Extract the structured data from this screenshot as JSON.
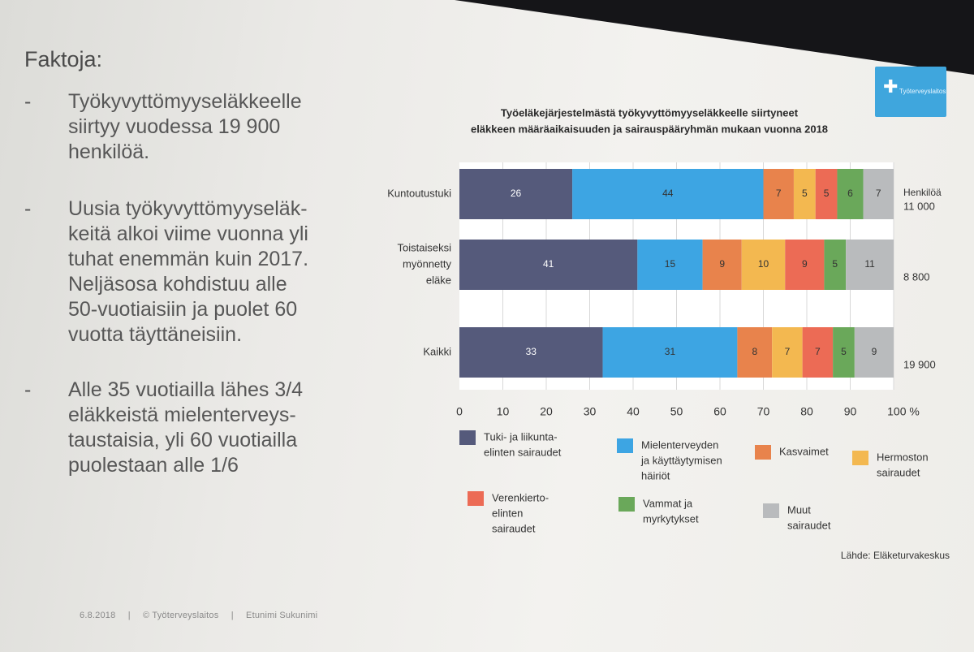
{
  "slide": {
    "heading": "Faktoja:",
    "bullets": [
      {
        "dash": "-",
        "text": "Työkyvyttömyyseläkkeelle\nsiirtyy vuodessa 19 900\nhenkilöä."
      },
      {
        "dash": "-",
        "text": "Uusia työkyvyttömyyseläk-\nkeitä alkoi viime vuonna yli\ntuhat enemmän kuin 2017.\nNeljäsosa kohdistuu alle\n50-vuotiaisiin ja puolet 60\nvuotta täyttäneisiin."
      },
      {
        "dash": "-",
        "text": "Alle 35 vuotiailla lähes 3/4\neläkkeistä mielenterveys-\ntaustaisia, yli 60 vuotiailla\npuolestaan alle 1/6"
      }
    ],
    "logo_text": "Työterveyslaitos",
    "footer": {
      "date": "6.8.2018",
      "org": "© Työterveyslaitos",
      "author": "Etunimi Sukunimi",
      "sep": "|"
    }
  },
  "chart_data": {
    "type": "bar",
    "orientation": "horizontal-stacked-percent",
    "title": [
      "Työeläkejärjestelmästä työkyvyttömyyseläkkeelle siirtyneet",
      "eläkkeen määräaikaisuuden ja sairauspääryhmän mukaan vuonna 2018"
    ],
    "categories": [
      {
        "label": [
          "Kuntoutustuki"
        ],
        "total": "11 000"
      },
      {
        "label": [
          "Toistaiseksi",
          "myönnetty",
          "eläke"
        ],
        "total": "8 800"
      },
      {
        "label": [
          "Kaikki"
        ],
        "total": "19 900"
      }
    ],
    "totals_header": "Henkilöä",
    "series": [
      {
        "name": "Tuki- ja liikuntaelinten sairaudet",
        "legend_lines": [
          "Tuki- ja liikunta-",
          "elinten sairaudet"
        ],
        "color": "#555a7b",
        "values": [
          26,
          41,
          33
        ]
      },
      {
        "name": "Mielenterveyden ja käyttäytymisen häiriöt",
        "legend_lines": [
          "Mielenterveyden",
          "ja käyttäytymisen",
          "häiriöt"
        ],
        "color": "#3da5e3",
        "values": [
          44,
          15,
          31
        ]
      },
      {
        "name": "Kasvaimet",
        "legend_lines": [
          "Kasvaimet"
        ],
        "color": "#e8834c",
        "values": [
          7,
          9,
          8
        ]
      },
      {
        "name": "Hermoston sairaudet",
        "legend_lines": [
          "Hermoston",
          "sairaudet"
        ],
        "color": "#f3b850",
        "values": [
          5,
          10,
          7
        ]
      },
      {
        "name": "Verenkiertoelinten sairaudet",
        "legend_lines": [
          "Verenkierto-",
          "elinten",
          "sairaudet"
        ],
        "color": "#ec6b55",
        "values": [
          5,
          9,
          7
        ]
      },
      {
        "name": "Vammat ja myrkytykset",
        "legend_lines": [
          "Vammat ja",
          "myrkytykset"
        ],
        "color": "#6aa85a",
        "values": [
          6,
          5,
          5
        ]
      },
      {
        "name": "Muut sairaudet",
        "legend_lines": [
          "Muut",
          "sairaudet"
        ],
        "color": "#b9bbbd",
        "values": [
          7,
          11,
          9
        ]
      }
    ],
    "xticks": [
      "0",
      "10",
      "20",
      "30",
      "40",
      "50",
      "60",
      "70",
      "80",
      "90",
      "100 %"
    ],
    "xlim": [
      0,
      100
    ],
    "legend_position": "bottom",
    "source": "Lähde: Eläketurvakeskus"
  }
}
